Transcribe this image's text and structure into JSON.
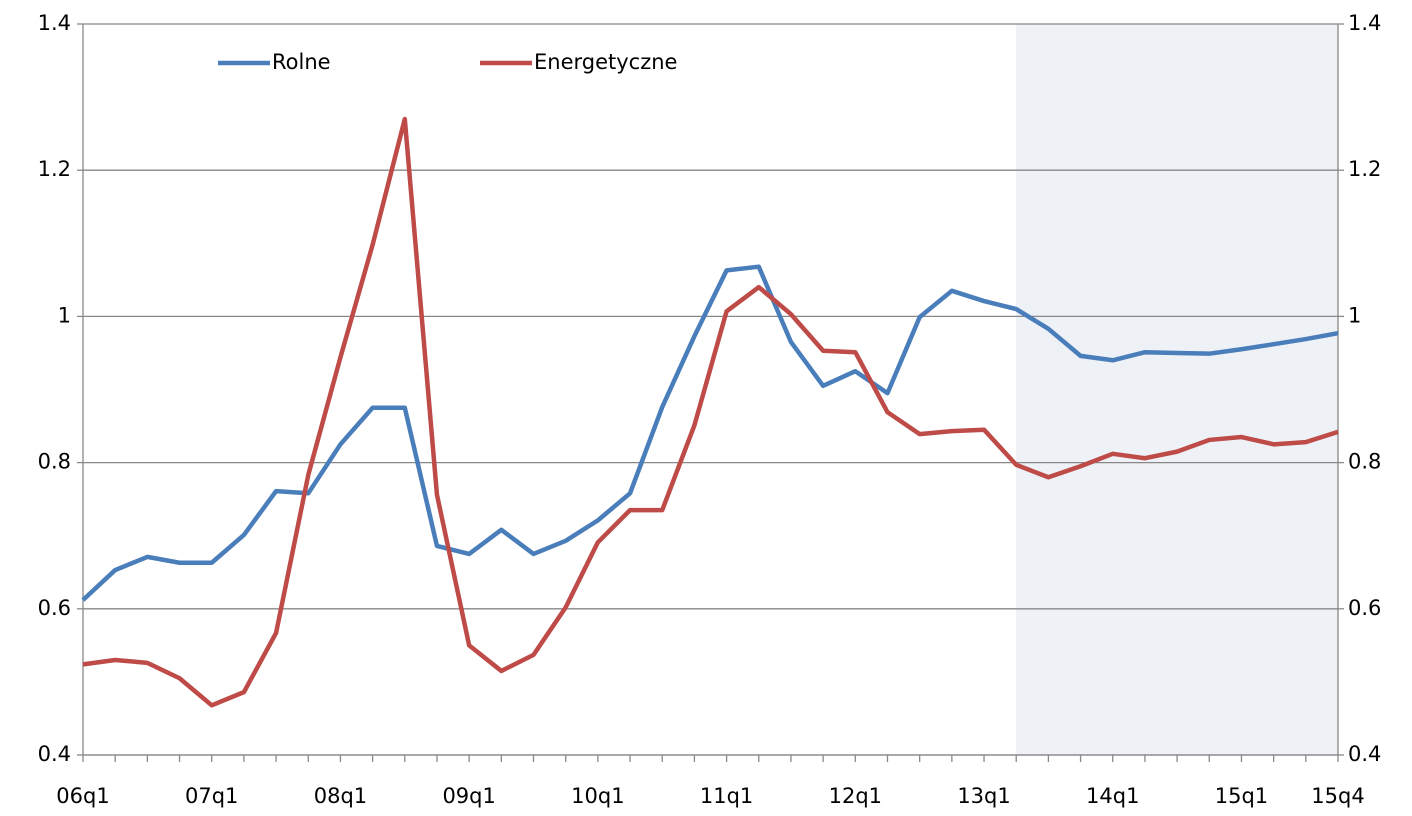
{
  "chart_data": {
    "type": "line",
    "categories": [
      "06q1",
      null,
      null,
      null,
      "07q1",
      null,
      null,
      null,
      "08q1",
      null,
      null,
      null,
      "09q1",
      null,
      null,
      null,
      "10q1",
      null,
      null,
      null,
      "11q1",
      null,
      null,
      null,
      "12q1",
      null,
      null,
      null,
      "13q1",
      null,
      null,
      null,
      "14q1",
      null,
      null,
      null,
      "15q1",
      null,
      null,
      "15q4"
    ],
    "series": [
      {
        "name": "Rolne",
        "color": "#4a7ebb",
        "values": [
          0.612,
          0.653,
          0.671,
          0.663,
          0.663,
          0.701,
          0.761,
          0.758,
          0.825,
          0.875,
          0.875,
          0.686,
          0.675,
          0.708,
          0.675,
          0.693,
          0.721,
          0.758,
          0.876,
          0.973,
          1.063,
          1.068,
          0.965,
          0.905,
          0.925,
          0.895,
          0.999,
          1.035,
          1.021,
          1.01,
          0.983,
          0.946,
          0.94,
          0.951,
          0.95,
          0.949,
          0.955,
          0.962,
          0.969,
          0.977
        ]
      },
      {
        "name": "Energetyczne",
        "color": "#be4b48",
        "values": [
          0.524,
          0.53,
          0.526,
          0.505,
          0.468,
          0.486,
          0.567,
          0.783,
          0.944,
          1.098,
          1.27,
          0.756,
          0.55,
          0.515,
          0.537,
          0.602,
          0.691,
          0.735,
          0.735,
          0.851,
          1.007,
          1.04,
          1.003,
          0.953,
          0.951,
          0.869,
          0.839,
          0.843,
          0.845,
          0.797,
          0.78,
          0.795,
          0.812,
          0.806,
          0.815,
          0.831,
          0.835,
          0.825,
          0.828,
          0.842
        ]
      }
    ],
    "ylim": [
      0.4,
      1.4
    ],
    "yticks": [
      0.4,
      0.6,
      0.8,
      1,
      1.2,
      1.4
    ],
    "y2lim": [
      0.4,
      1.4
    ],
    "y2ticks": [
      0.4,
      0.6,
      0.8,
      1,
      1.2,
      1.4
    ],
    "grid": true,
    "legend": "top"
  }
}
